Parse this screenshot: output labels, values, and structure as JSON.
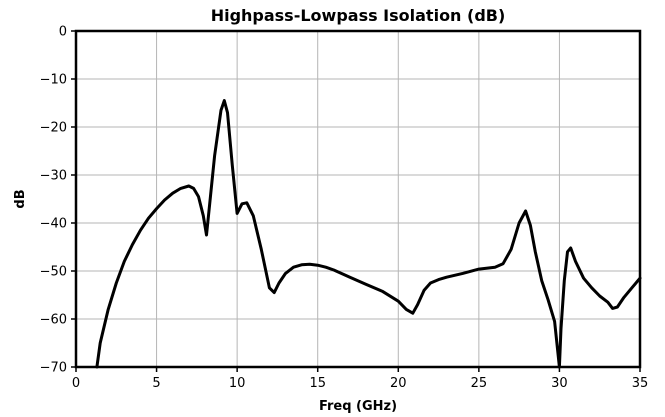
{
  "chart_data": {
    "type": "line",
    "title": "Highpass-Lowpass Isolation (dB)",
    "xlabel": "Freq (GHz)",
    "ylabel": "dB",
    "xlim": [
      0,
      35
    ],
    "ylim": [
      -70,
      0
    ],
    "xticks": [
      0,
      5,
      10,
      15,
      20,
      25,
      30,
      35
    ],
    "yticks": [
      0,
      -10,
      -20,
      -30,
      -40,
      -50,
      -60,
      -70
    ],
    "grid": true,
    "colors": {
      "series": "#000000",
      "grid": "#b5b5b5"
    },
    "series": [
      {
        "x": [
          1.3,
          1.5,
          2,
          2.5,
          3,
          3.5,
          4,
          4.5,
          5,
          5.5,
          6,
          6.5,
          7,
          7.3,
          7.6,
          7.9,
          8.1,
          8.3,
          8.6,
          9.0,
          9.2,
          9.4,
          9.7,
          10.0,
          10.3,
          10.6,
          11.0,
          11.5,
          12.0,
          12.3,
          12.6,
          13.0,
          13.5,
          14.0,
          14.5,
          15.0,
          15.5,
          16,
          17,
          18,
          19,
          20,
          20.5,
          20.9,
          21.2,
          21.6,
          22,
          22.5,
          23,
          24,
          25,
          26,
          26.5,
          27,
          27.5,
          27.9,
          28.2,
          28.5,
          28.9,
          29.3,
          29.7,
          30.0,
          30.1,
          30.3,
          30.5,
          30.7,
          31.0,
          31.5,
          32,
          32.5,
          33,
          33.3,
          33.6,
          34,
          34.5,
          35
        ],
        "y": [
          -70,
          -65,
          -58,
          -52.5,
          -48,
          -44.5,
          -41.5,
          -39,
          -37,
          -35.2,
          -33.8,
          -32.8,
          -32.3,
          -32.8,
          -34.5,
          -38.5,
          -42.5,
          -36,
          -26,
          -16.5,
          -14.5,
          -17,
          -28,
          -38,
          -36,
          -35.8,
          -38.5,
          -45.5,
          -53.5,
          -54.5,
          -52.5,
          -50.5,
          -49.2,
          -48.7,
          -48.6,
          -48.8,
          -49.2,
          -49.8,
          -51.3,
          -52.8,
          -54.2,
          -56.3,
          -58,
          -58.8,
          -57,
          -54,
          -52.5,
          -51.8,
          -51.3,
          -50.5,
          -49.6,
          -49.2,
          -48.5,
          -45.5,
          -40,
          -37.5,
          -40.5,
          -46,
          -52,
          -56,
          -60.5,
          -70,
          -62,
          -52,
          -46,
          -45.2,
          -48,
          -51.5,
          -53.5,
          -55.2,
          -56.5,
          -57.8,
          -57.5,
          -55.5,
          -53.5,
          -51.5
        ]
      }
    ]
  }
}
